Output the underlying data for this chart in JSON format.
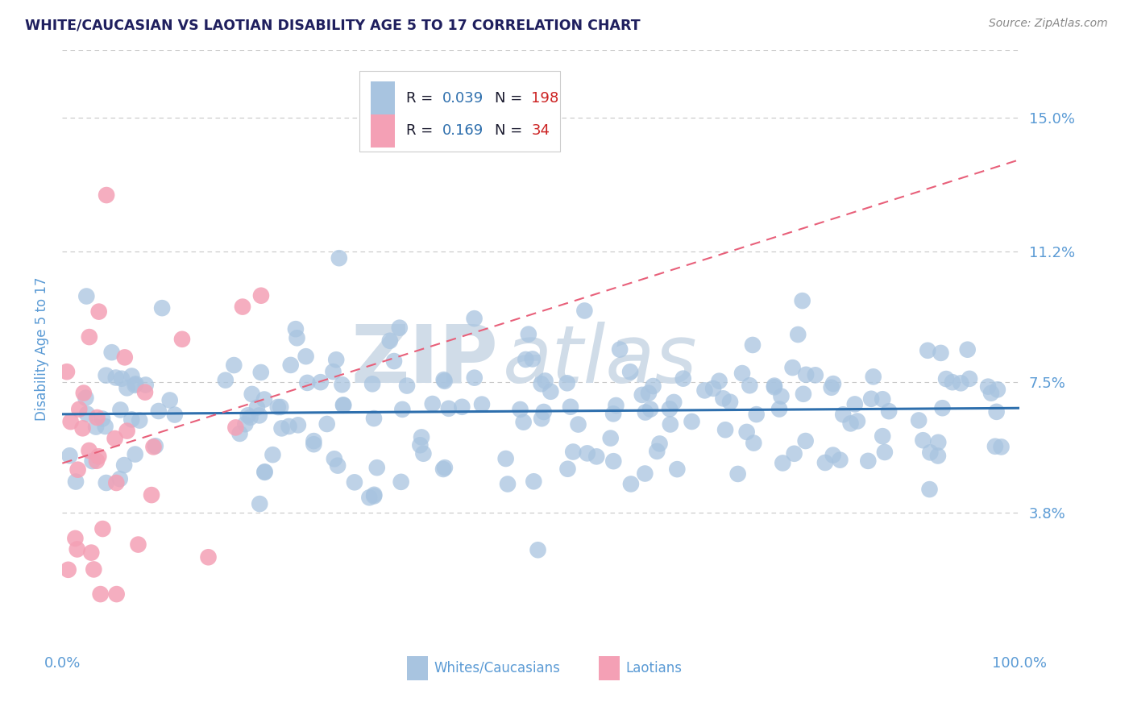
{
  "title": "WHITE/CAUCASIAN VS LAOTIAN DISABILITY AGE 5 TO 17 CORRELATION CHART",
  "source": "Source: ZipAtlas.com",
  "ylabel": "Disability Age 5 to 17",
  "xlim": [
    0,
    100
  ],
  "ylim": [
    0.0,
    16.9
  ],
  "yticks": [
    3.8,
    7.5,
    11.2,
    15.0
  ],
  "ytick_labels": [
    "3.8%",
    "7.5%",
    "11.2%",
    "15.0%"
  ],
  "xtick_labels": [
    "0.0%",
    "100.0%"
  ],
  "title_color": "#1f1f5e",
  "title_fontsize": 12.5,
  "tick_color": "#5b9bd5",
  "blue_dot_color": "#a8c4e0",
  "pink_dot_color": "#f4a0b5",
  "blue_line_color": "#2e6fad",
  "pink_line_color": "#e8607a",
  "legend_label_color": "#1a1a2e",
  "legend_value_color": "#2e6fad",
  "legend_N_color": "#cc2222",
  "grid_color": "#c8c8c8",
  "background_color": "#ffffff",
  "watermark_color": "#d0dce8",
  "R_blue": 0.039,
  "N_blue": 198,
  "R_pink": 0.169,
  "N_pink": 34,
  "blue_mean_y": 6.8,
  "blue_std_y": 1.3,
  "pink_mean_y": 6.0,
  "pink_std_y": 2.8
}
